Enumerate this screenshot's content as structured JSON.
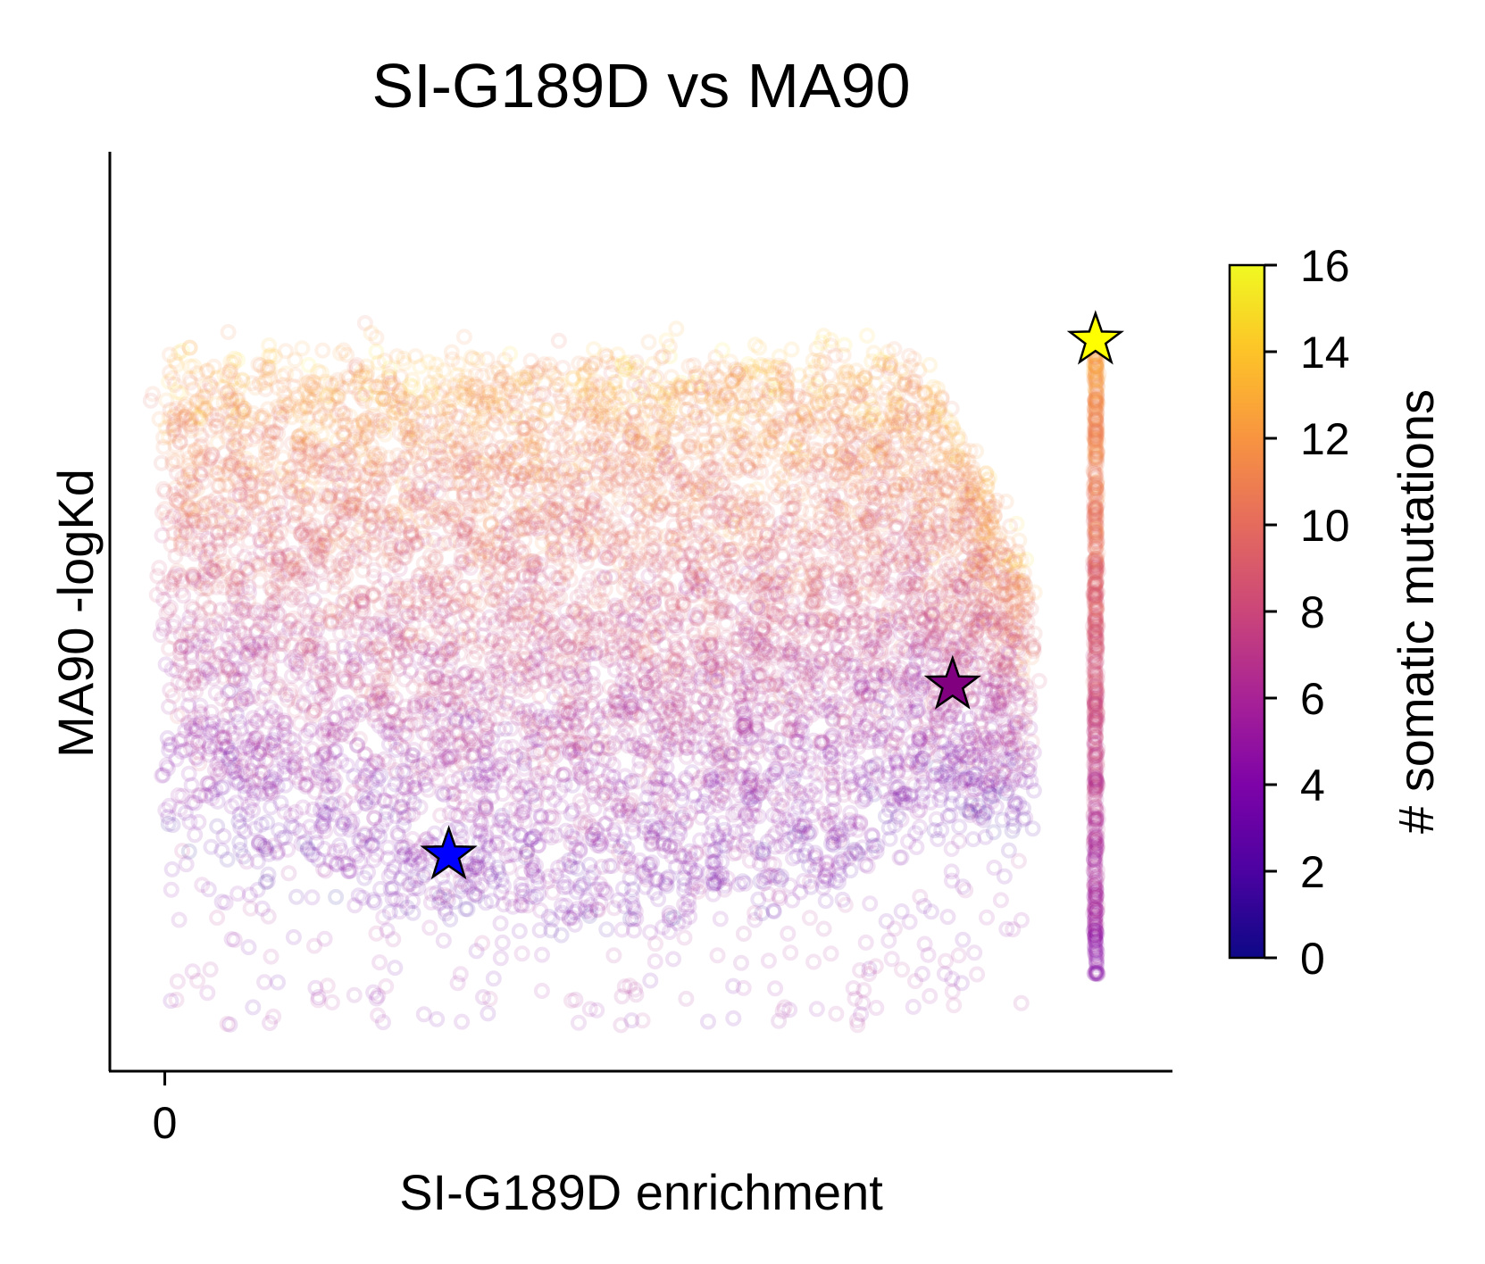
{
  "chart_data": {
    "type": "scatter",
    "title": "SI-G189D vs MA90",
    "xlabel": "SI-G189D enrichment",
    "ylabel": "MA90 -logKd",
    "x_ticks": [
      {
        "value": 0,
        "label": "0"
      }
    ],
    "xlim": [
      -0.3,
      5.5
    ],
    "ylim": [
      0,
      1
    ],
    "colorbar": {
      "label": "# somatic mutations",
      "colormap": "plasma",
      "range": [
        0,
        16
      ],
      "ticks": [
        0,
        2,
        4,
        6,
        8,
        10,
        12,
        14,
        16
      ]
    },
    "scatter_style": {
      "marker": "hollow-circle",
      "alpha": 0.12,
      "n_points": "tens of thousands"
    },
    "highlighted_points": [
      {
        "marker": "star",
        "color": "#0000ff",
        "x": 1.55,
        "y": 0.235
      },
      {
        "marker": "star",
        "color": "#800080",
        "x": 4.3,
        "y": 0.42
      },
      {
        "marker": "star",
        "color": "#ffff00",
        "x": 5.08,
        "y": 0.795
      }
    ],
    "grid": false
  }
}
